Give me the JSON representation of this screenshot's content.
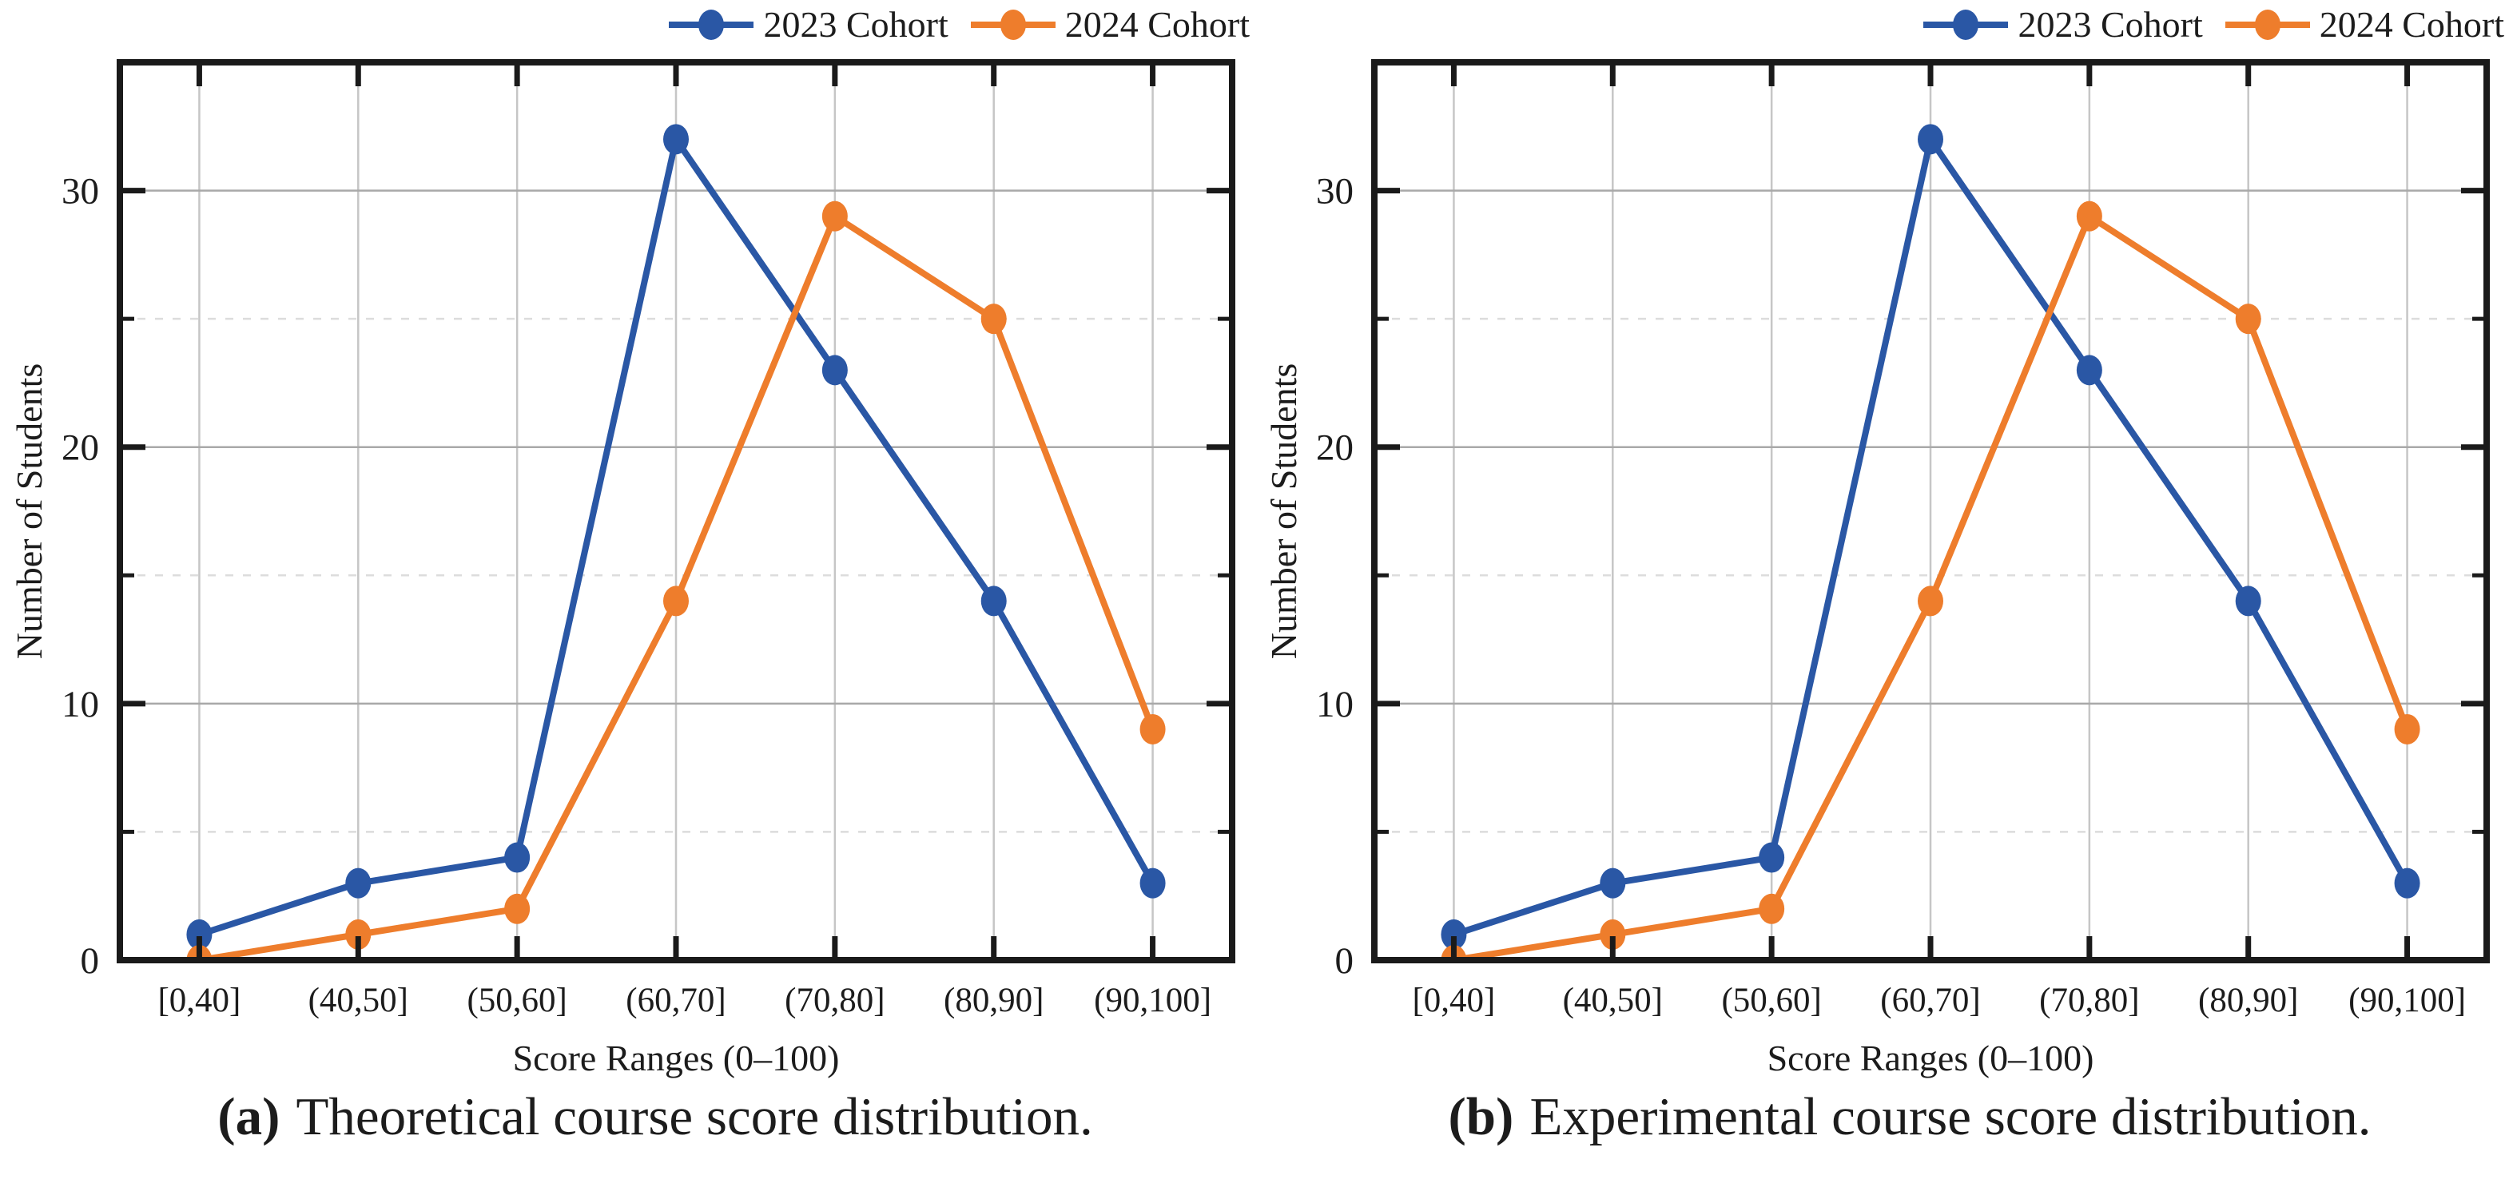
{
  "style": {
    "background": "#ffffff",
    "frame": "#1a1a1a",
    "text": "#1c1c1c",
    "grid_vertical": "#c6c6c6",
    "grid_major": "#a9a9a9",
    "grid_minor": "#dcdcdc",
    "series_colors": [
      "#2a57a5",
      "#ee7d2c"
    ]
  },
  "chart_data": [
    {
      "type": "line",
      "caption": {
        "label": "a",
        "text": "Theoretical course score distribution."
      },
      "xlabel": "Score Ranges (0–100)",
      "ylabel": "Number of Students",
      "categories": [
        "[0,40]",
        "(40,50]",
        "(50,60]",
        "(60,70]",
        "(70,80]",
        "(80,90]",
        "(90,100]"
      ],
      "series": [
        {
          "name": "2023 Cohort",
          "color": "#2a57a5",
          "values": [
            1,
            3,
            4,
            32,
            23,
            14,
            3
          ]
        },
        {
          "name": "2024 Cohort",
          "color": "#ee7d2c",
          "values": [
            0,
            1,
            2,
            14,
            29,
            25,
            9
          ]
        }
      ],
      "ylim": [
        0,
        35
      ],
      "yticks": [
        0,
        10,
        20,
        30
      ],
      "yticks_minor": [
        5,
        15,
        25
      ],
      "grid": true,
      "legend_position": "top-right"
    },
    {
      "type": "line",
      "caption": {
        "label": "b",
        "text": "Experimental course score distribution."
      },
      "xlabel": "Score Ranges (0–100)",
      "ylabel": "Number of Students",
      "categories": [
        "[0,40]",
        "(40,50]",
        "(50,60]",
        "(60,70]",
        "(70,80]",
        "(80,90]",
        "(90,100]"
      ],
      "series": [
        {
          "name": "2023 Cohort",
          "color": "#2a57a5",
          "values": [
            1,
            3,
            4,
            32,
            23,
            14,
            3
          ]
        },
        {
          "name": "2024 Cohort",
          "color": "#ee7d2c",
          "values": [
            0,
            1,
            2,
            14,
            29,
            25,
            9
          ]
        }
      ],
      "ylim": [
        0,
        35
      ],
      "yticks": [
        0,
        10,
        20,
        30
      ],
      "yticks_minor": [
        5,
        15,
        25
      ],
      "grid": true,
      "legend_position": "top-right"
    }
  ]
}
